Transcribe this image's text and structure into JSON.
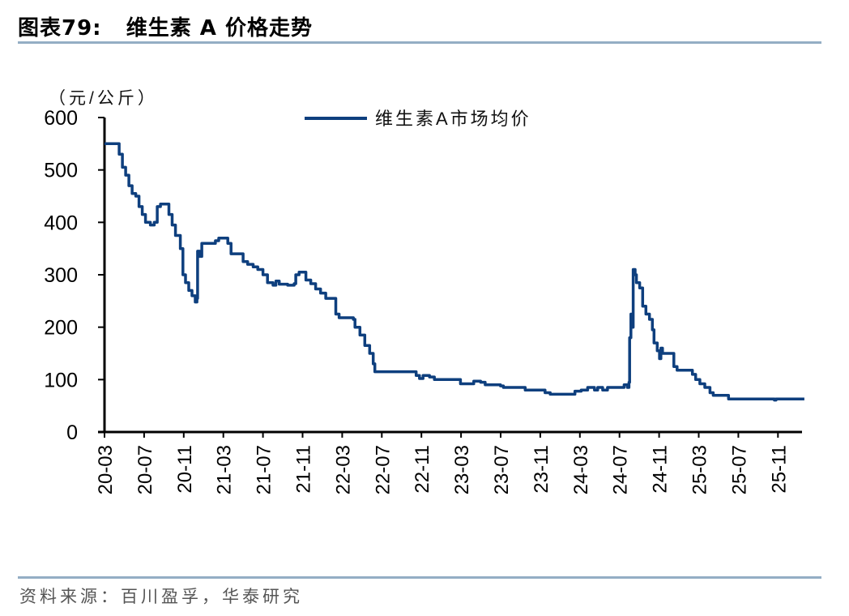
{
  "header": {
    "figure_label": "图表79:",
    "title": "维生素 A 价格走势"
  },
  "footer": {
    "source": "资料来源：百川盈孚，华泰研究"
  },
  "colors": {
    "series": "#0e3f7e",
    "axis": "#000000",
    "rule": "#94aec4"
  },
  "chart_data": {
    "type": "line",
    "title": "维生素 A 价格走势",
    "ylabel": "（元/公斤）",
    "xlabel": "",
    "ylim": [
      0,
      600
    ],
    "yticks": [
      0,
      100,
      200,
      300,
      400,
      500,
      600
    ],
    "xticks": [
      "20-03",
      "20-07",
      "20-11",
      "21-03",
      "21-07",
      "21-11",
      "22-03",
      "22-07",
      "22-11",
      "23-03",
      "23-07",
      "23-11",
      "24-03",
      "24-07",
      "24-11",
      "25-03",
      "25-07",
      "25-11"
    ],
    "grid": false,
    "legend_position": "top-center",
    "series": [
      {
        "name": "维生素A市场均价",
        "color": "#0e3f7e",
        "points": [
          [
            "2020-03-01",
            550
          ],
          [
            "2020-04-10",
            550
          ],
          [
            "2020-04-15",
            530
          ],
          [
            "2020-04-25",
            505
          ],
          [
            "2020-05-05",
            490
          ],
          [
            "2020-05-15",
            470
          ],
          [
            "2020-05-25",
            455
          ],
          [
            "2020-06-05",
            450
          ],
          [
            "2020-06-15",
            430
          ],
          [
            "2020-06-25",
            415
          ],
          [
            "2020-07-05",
            400
          ],
          [
            "2020-07-20",
            395
          ],
          [
            "2020-08-01",
            400
          ],
          [
            "2020-08-10",
            430
          ],
          [
            "2020-08-20",
            435
          ],
          [
            "2020-09-05",
            435
          ],
          [
            "2020-09-15",
            415
          ],
          [
            "2020-09-25",
            395
          ],
          [
            "2020-10-05",
            375
          ],
          [
            "2020-10-20",
            350
          ],
          [
            "2020-10-28",
            300
          ],
          [
            "2020-11-05",
            285
          ],
          [
            "2020-11-15",
            270
          ],
          [
            "2020-11-25",
            260
          ],
          [
            "2020-12-05",
            248
          ],
          [
            "2020-12-10",
            255
          ],
          [
            "2020-12-12",
            345
          ],
          [
            "2020-12-18",
            335
          ],
          [
            "2020-12-25",
            360
          ],
          [
            "2021-01-20",
            360
          ],
          [
            "2021-02-05",
            365
          ],
          [
            "2021-02-15",
            370
          ],
          [
            "2021-03-05",
            370
          ],
          [
            "2021-03-15",
            360
          ],
          [
            "2021-03-25",
            340
          ],
          [
            "2021-04-20",
            340
          ],
          [
            "2021-05-01",
            325
          ],
          [
            "2021-05-15",
            320
          ],
          [
            "2021-06-01",
            315
          ],
          [
            "2021-06-15",
            310
          ],
          [
            "2021-07-01",
            300
          ],
          [
            "2021-07-15",
            285
          ],
          [
            "2021-08-01",
            280
          ],
          [
            "2021-08-10",
            288
          ],
          [
            "2021-08-20",
            282
          ],
          [
            "2021-09-15",
            280
          ],
          [
            "2021-10-05",
            283
          ],
          [
            "2021-10-10",
            300
          ],
          [
            "2021-10-20",
            305
          ],
          [
            "2021-11-05",
            305
          ],
          [
            "2021-11-10",
            290
          ],
          [
            "2021-11-25",
            283
          ],
          [
            "2021-12-10",
            273
          ],
          [
            "2021-12-25",
            265
          ],
          [
            "2022-01-10",
            255
          ],
          [
            "2022-01-30",
            255
          ],
          [
            "2022-02-10",
            225
          ],
          [
            "2022-02-20",
            218
          ],
          [
            "2022-03-25",
            218
          ],
          [
            "2022-04-05",
            215
          ],
          [
            "2022-04-10",
            200
          ],
          [
            "2022-04-25",
            185
          ],
          [
            "2022-05-10",
            165
          ],
          [
            "2022-05-25",
            150
          ],
          [
            "2022-06-05",
            130
          ],
          [
            "2022-06-10",
            115
          ],
          [
            "2022-09-25",
            115
          ],
          [
            "2022-10-15",
            108
          ],
          [
            "2022-10-25",
            102
          ],
          [
            "2022-11-05",
            108
          ],
          [
            "2022-11-25",
            105
          ],
          [
            "2022-12-10",
            100
          ],
          [
            "2023-02-20",
            100
          ],
          [
            "2023-02-28",
            92
          ],
          [
            "2023-04-01",
            92
          ],
          [
            "2023-04-10",
            97
          ],
          [
            "2023-05-01",
            95
          ],
          [
            "2023-05-15",
            90
          ],
          [
            "2023-07-01",
            88
          ],
          [
            "2023-07-10",
            85
          ],
          [
            "2023-09-10",
            85
          ],
          [
            "2023-09-15",
            80
          ],
          [
            "2023-11-01",
            80
          ],
          [
            "2023-11-15",
            75
          ],
          [
            "2023-12-01",
            72
          ],
          [
            "2024-02-01",
            72
          ],
          [
            "2024-02-15",
            78
          ],
          [
            "2024-03-05",
            80
          ],
          [
            "2024-03-25",
            85
          ],
          [
            "2024-04-15",
            80
          ],
          [
            "2024-04-25",
            85
          ],
          [
            "2024-05-10",
            80
          ],
          [
            "2024-05-25",
            85
          ],
          [
            "2024-07-05",
            85
          ],
          [
            "2024-07-15",
            90
          ],
          [
            "2024-07-25",
            85
          ],
          [
            "2024-07-30",
            95
          ],
          [
            "2024-08-01",
            180
          ],
          [
            "2024-08-05",
            225
          ],
          [
            "2024-08-08",
            200
          ],
          [
            "2024-08-12",
            310
          ],
          [
            "2024-08-18",
            300
          ],
          [
            "2024-08-22",
            285
          ],
          [
            "2024-09-01",
            275
          ],
          [
            "2024-09-10",
            240
          ],
          [
            "2024-09-20",
            225
          ],
          [
            "2024-10-01",
            215
          ],
          [
            "2024-10-10",
            195
          ],
          [
            "2024-10-15",
            170
          ],
          [
            "2024-10-25",
            155
          ],
          [
            "2024-11-01",
            140
          ],
          [
            "2024-11-05",
            160
          ],
          [
            "2024-11-10",
            150
          ],
          [
            "2024-12-05",
            150
          ],
          [
            "2024-12-15",
            125
          ],
          [
            "2024-12-25",
            118
          ],
          [
            "2025-01-25",
            118
          ],
          [
            "2025-02-10",
            110
          ],
          [
            "2025-02-20",
            100
          ],
          [
            "2025-03-05",
            92
          ],
          [
            "2025-03-20",
            85
          ],
          [
            "2025-04-05",
            75
          ],
          [
            "2025-04-15",
            70
          ],
          [
            "2025-05-15",
            70
          ],
          [
            "2025-06-01",
            63
          ],
          [
            "2025-10-15",
            63
          ],
          [
            "2025-10-20",
            61
          ],
          [
            "2025-10-25",
            63
          ],
          [
            "2026-01-20",
            63
          ]
        ]
      }
    ]
  }
}
